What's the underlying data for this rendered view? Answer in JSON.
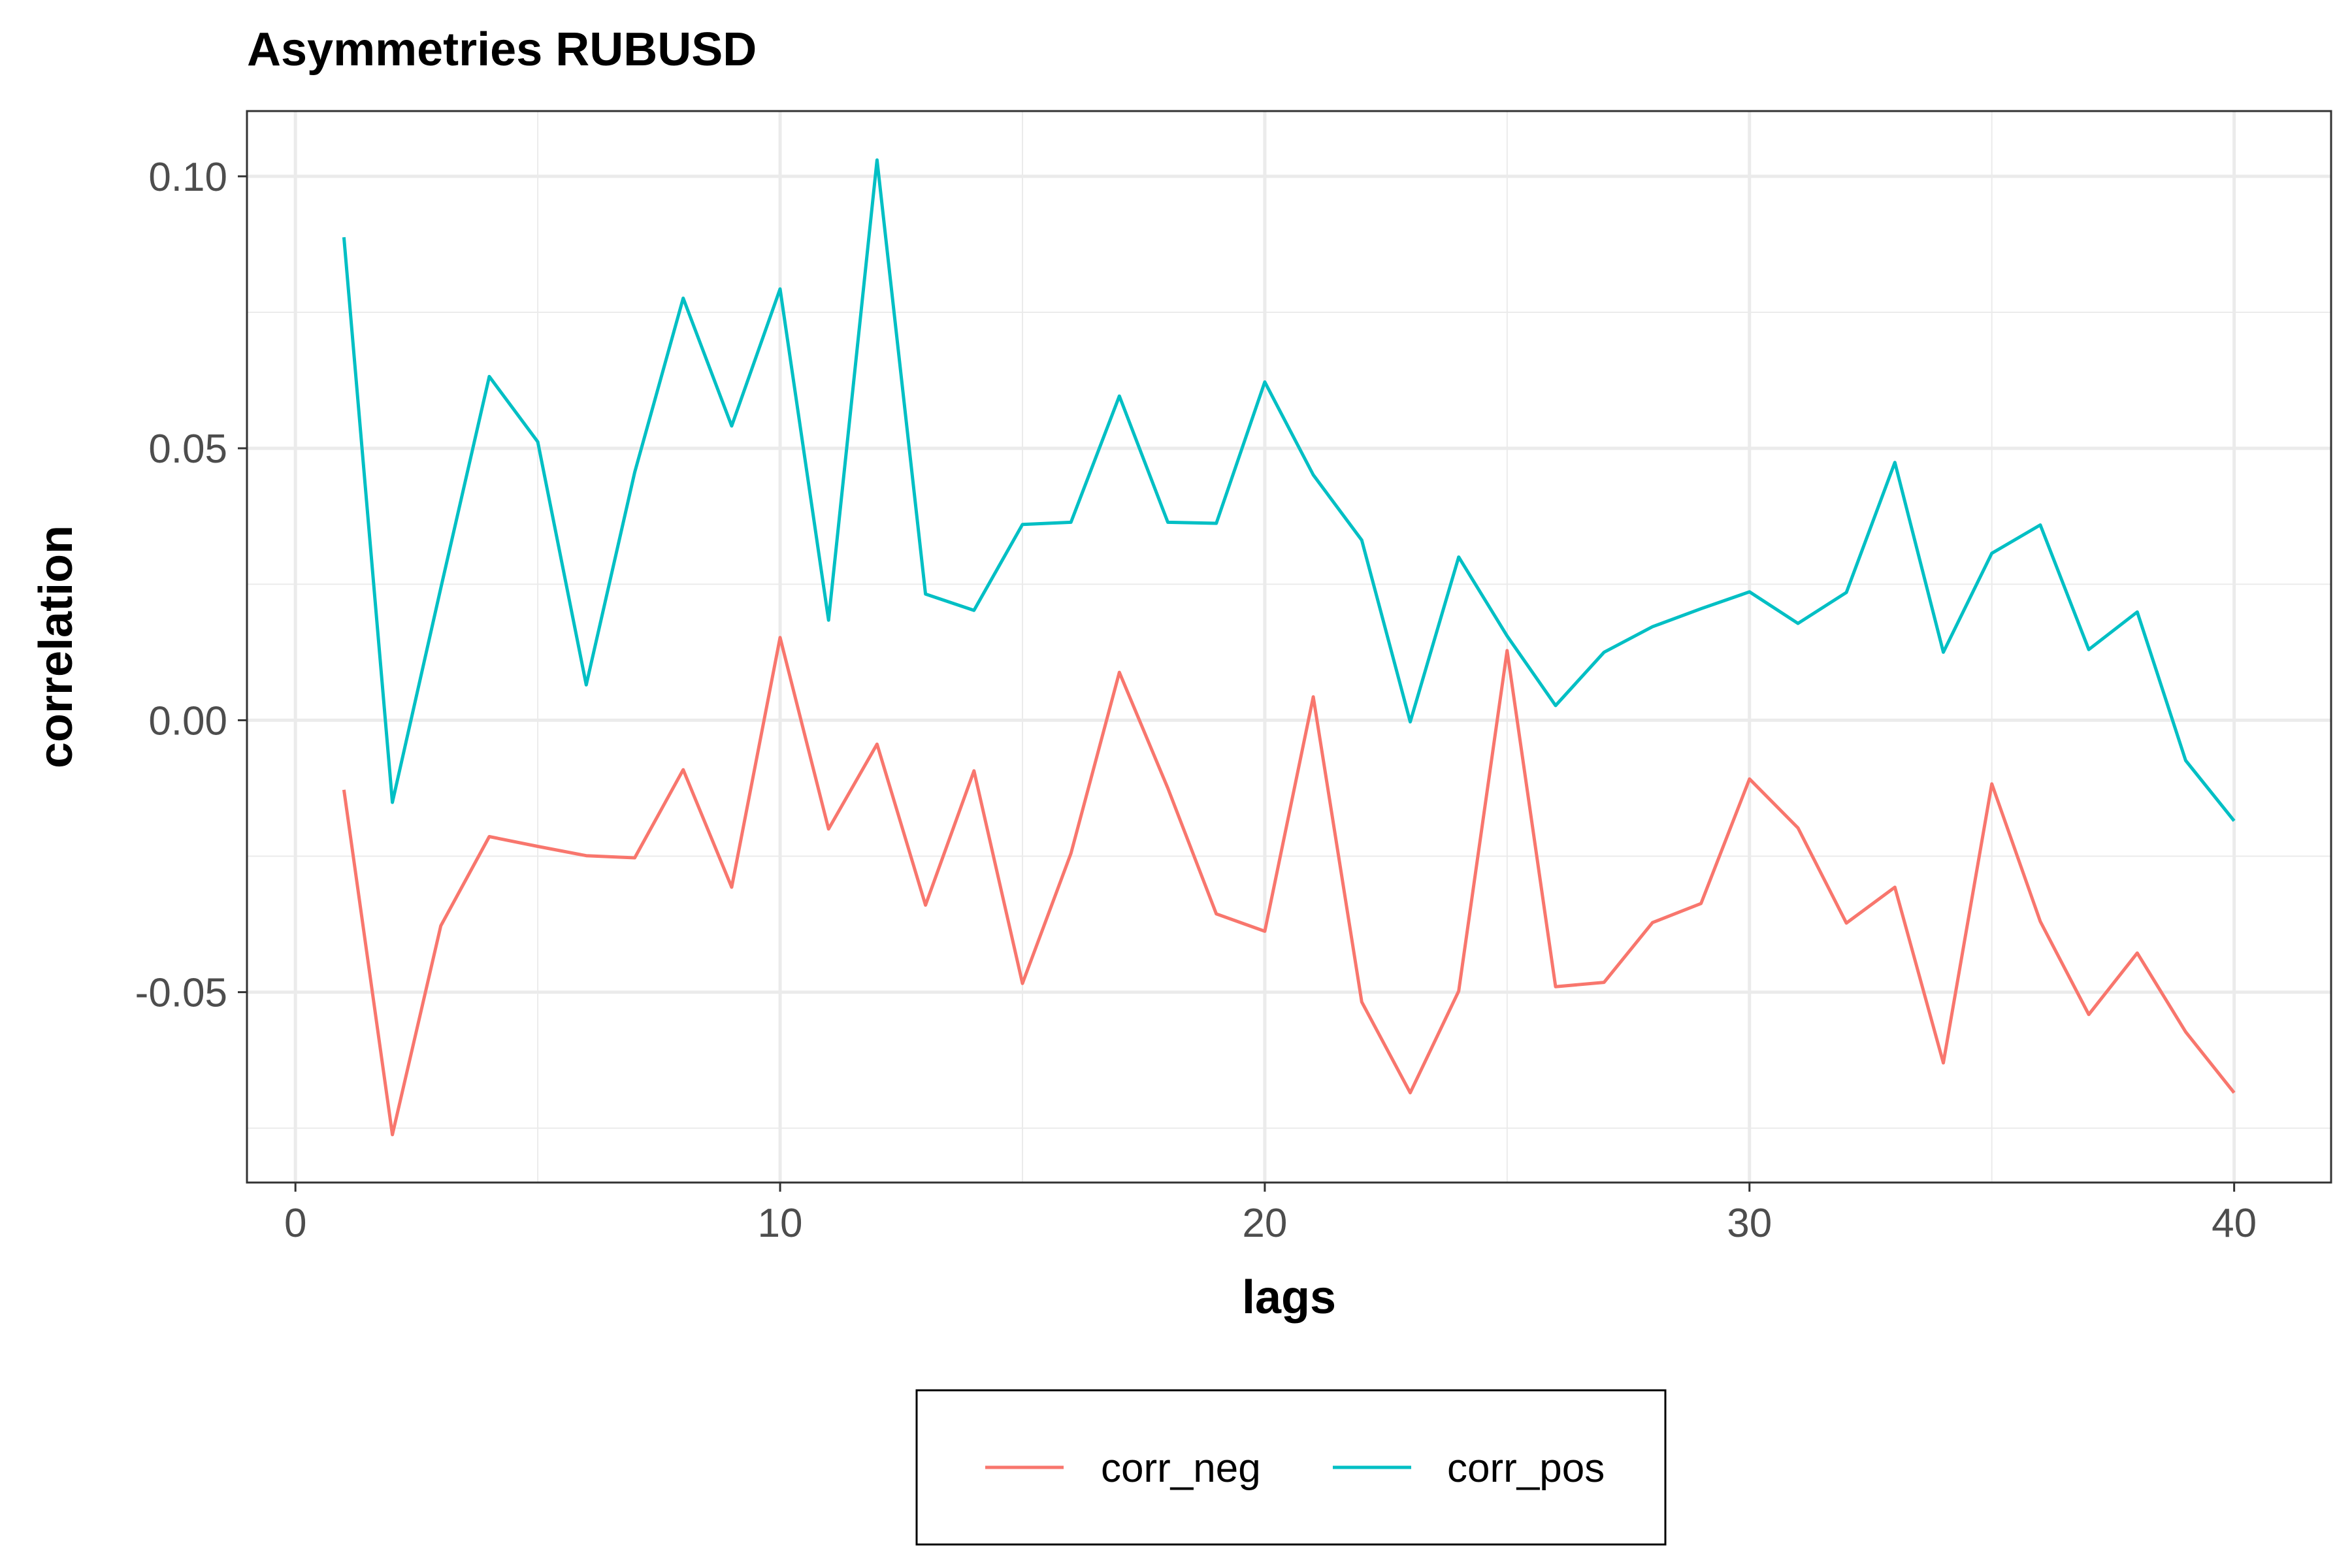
{
  "chart_data": {
    "type": "line",
    "title": "Asymmetries RUBUSD",
    "xlabel": "lags",
    "ylabel": "correlation",
    "xlim": [
      -1,
      42
    ],
    "ylim": [
      -0.085,
      0.112
    ],
    "xticks": [
      0,
      10,
      20,
      30,
      40
    ],
    "xtick_labels": [
      "0",
      "10",
      "20",
      "30",
      "40"
    ],
    "yticks": [
      -0.05,
      0.0,
      0.05,
      0.1
    ],
    "ytick_labels": [
      "-0.05",
      "0.00",
      "0.05",
      "0.10"
    ],
    "yminor": [
      -0.075,
      -0.025,
      0.025,
      0.075
    ],
    "xminor": [
      5,
      15,
      25,
      35
    ],
    "grid": true,
    "legend_position": "bottom",
    "x": [
      1,
      2,
      3,
      4,
      5,
      6,
      7,
      8,
      9,
      10,
      11,
      12,
      13,
      14,
      15,
      16,
      17,
      18,
      19,
      20,
      21,
      22,
      23,
      24,
      25,
      26,
      27,
      28,
      29,
      30,
      31,
      32,
      33,
      34,
      35,
      36,
      37,
      38,
      39,
      40
    ],
    "series": [
      {
        "name": "corr_neg",
        "color": "#F8766D",
        "values": [
          -0.0128,
          -0.0762,
          -0.0378,
          -0.0214,
          -0.0232,
          -0.0249,
          -0.0253,
          -0.0091,
          -0.0307,
          0.0152,
          -0.02,
          -0.0044,
          -0.034,
          -0.0093,
          -0.0484,
          -0.0245,
          0.0088,
          -0.0125,
          -0.0356,
          -0.0388,
          0.0043,
          -0.0518,
          -0.0685,
          -0.0498,
          0.0128,
          -0.049,
          -0.0482,
          -0.0372,
          -0.0337,
          -0.0108,
          -0.0198,
          -0.0373,
          -0.0307,
          -0.063,
          -0.0117,
          -0.037,
          -0.0541,
          -0.0428,
          -0.0573,
          -0.0685
        ]
      },
      {
        "name": "corr_pos",
        "color": "#00BFC4",
        "values": [
          0.0888,
          -0.0151,
          0.0243,
          0.0632,
          0.0512,
          0.0065,
          0.0456,
          0.0776,
          0.0541,
          0.0793,
          0.0184,
          0.103,
          0.0232,
          0.0202,
          0.036,
          0.0364,
          0.0596,
          0.0364,
          0.0362,
          0.0622,
          0.0451,
          0.0331,
          -0.0003,
          0.03,
          0.0155,
          0.0027,
          0.0125,
          0.0172,
          0.0205,
          0.0236,
          0.0178,
          0.0235,
          0.0474,
          0.0125,
          0.0307,
          0.0359,
          0.013,
          0.0199,
          -0.0074,
          -0.0185
        ]
      }
    ]
  }
}
